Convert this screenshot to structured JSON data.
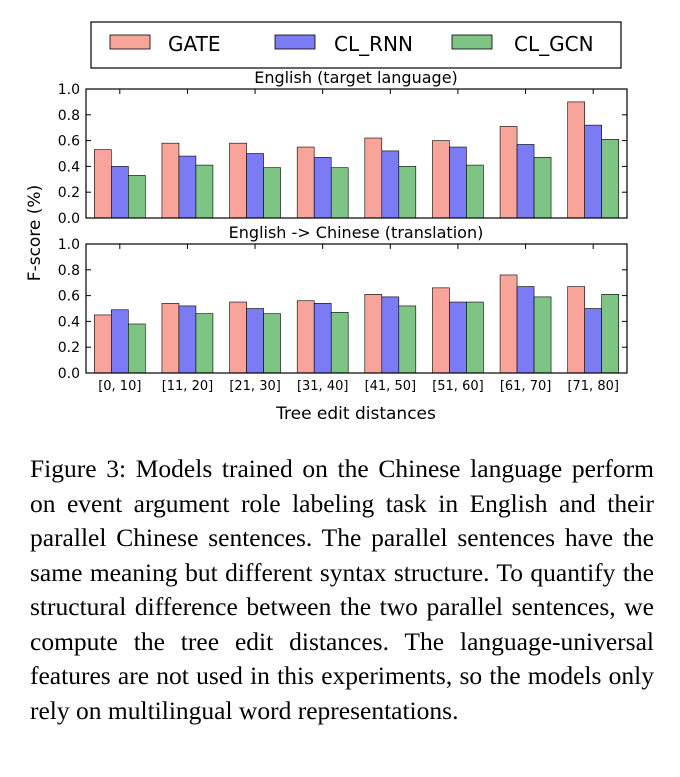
{
  "figure": {
    "legend": [
      "GATE",
      "CL_RNN",
      "CL_GCN"
    ],
    "colors": {
      "GATE": "#f8a49a",
      "CL_RNN": "#7b7cf5",
      "CL_GCN": "#7ec485"
    },
    "ylabel": "F-score (%)",
    "xlabel": "Tree edit distances"
  },
  "chart_data": [
    {
      "type": "bar",
      "title": "English (target language)",
      "categories": [
        "[0, 10]",
        "[11, 20]",
        "[21, 30]",
        "[31, 40]",
        "[41, 50]",
        "[51, 60]",
        "[61, 70]",
        "[71, 80]"
      ],
      "series": [
        {
          "name": "GATE",
          "values": [
            0.53,
            0.58,
            0.58,
            0.55,
            0.62,
            0.6,
            0.71,
            0.9
          ]
        },
        {
          "name": "CL_RNN",
          "values": [
            0.4,
            0.48,
            0.5,
            0.47,
            0.52,
            0.55,
            0.57,
            0.72
          ]
        },
        {
          "name": "CL_GCN",
          "values": [
            0.33,
            0.41,
            0.39,
            0.39,
            0.4,
            0.41,
            0.47,
            0.61
          ]
        }
      ],
      "ylim": [
        0,
        1.0
      ],
      "yticks": [
        "0.0",
        "0.2",
        "0.4",
        "0.6",
        "0.8",
        "1.0"
      ],
      "legend_position": "top"
    },
    {
      "type": "bar",
      "title": "English -> Chinese (translation)",
      "categories": [
        "[0, 10]",
        "[11, 20]",
        "[21, 30]",
        "[31, 40]",
        "[41, 50]",
        "[51, 60]",
        "[61, 70]",
        "[71, 80]"
      ],
      "series": [
        {
          "name": "GATE",
          "values": [
            0.45,
            0.54,
            0.55,
            0.56,
            0.61,
            0.66,
            0.76,
            0.67
          ]
        },
        {
          "name": "CL_RNN",
          "values": [
            0.49,
            0.52,
            0.5,
            0.54,
            0.59,
            0.55,
            0.67,
            0.5
          ]
        },
        {
          "name": "CL_GCN",
          "values": [
            0.38,
            0.46,
            0.46,
            0.47,
            0.52,
            0.55,
            0.59,
            0.61
          ]
        }
      ],
      "ylim": [
        0,
        1.0
      ],
      "yticks": [
        "0.0",
        "0.2",
        "0.4",
        "0.6",
        "0.8",
        "1.0"
      ]
    }
  ],
  "caption": "Figure 3: Models trained on the Chinese language perform on event argument role labeling task in English and their parallel Chinese sentences. The parallel sentences have the same meaning but different syntax structure. To quantify the structural difference between the two parallel sentences, we compute the tree edit distances. The language-universal features are not used in this experiments, so the models only rely on multilingual word representations."
}
